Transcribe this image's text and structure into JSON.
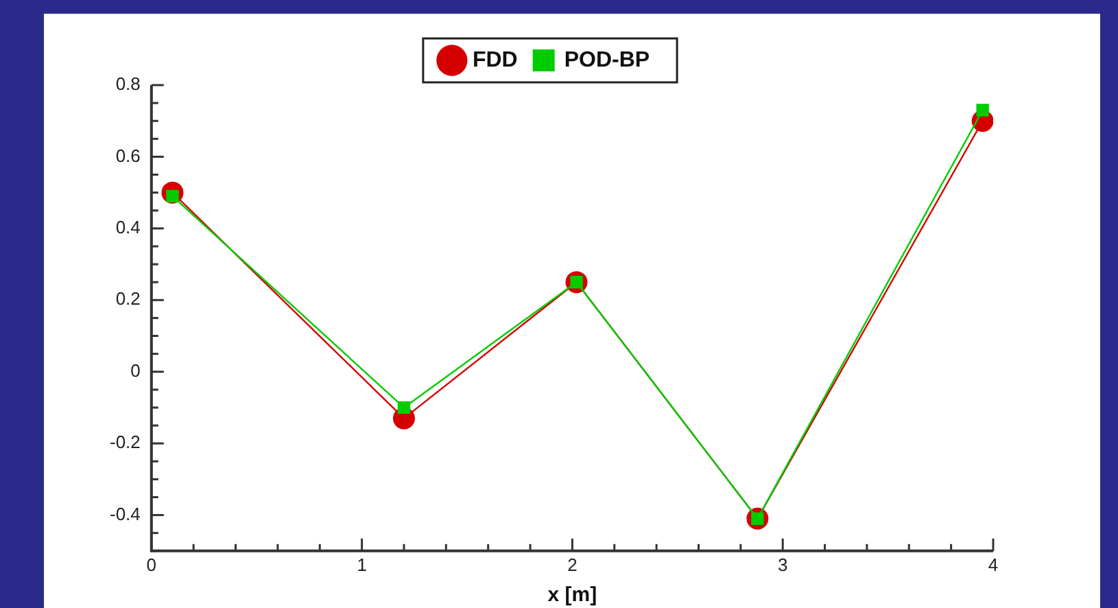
{
  "chart_data": {
    "type": "line",
    "xlabel": "x [m]",
    "x": [
      0.1,
      1.2,
      2.02,
      2.88,
      3.95
    ],
    "series": [
      {
        "name": "FDD",
        "color": "#d40000",
        "marker": "circle",
        "values": [
          0.5,
          -0.13,
          0.25,
          -0.41,
          0.7
        ]
      },
      {
        "name": "POD-BP",
        "color": "#00cc00",
        "marker": "square",
        "values": [
          0.49,
          -0.1,
          0.25,
          -0.41,
          0.73
        ]
      }
    ],
    "xlim": [
      0,
      4
    ],
    "xticks": [
      0,
      {
        "value": 0.2,
        "label": null
      },
      {
        "value": 0.4,
        "label": null
      },
      {
        "value": 0.6,
        "label": null
      },
      {
        "value": 0.8,
        "label": null
      },
      1,
      {
        "value": 1.2,
        "label": null
      },
      {
        "value": 1.4,
        "label": null
      },
      {
        "value": 1.6,
        "label": null
      },
      {
        "value": 1.8,
        "label": null
      },
      2,
      {
        "value": 2.2,
        "label": null
      },
      {
        "value": 2.4,
        "label": null
      },
      {
        "value": 2.6,
        "label": null
      },
      {
        "value": 2.8,
        "label": null
      },
      3,
      {
        "value": 3.2,
        "label": null
      },
      {
        "value": 3.4,
        "label": null
      },
      {
        "value": 3.6,
        "label": null
      },
      {
        "value": 3.8,
        "label": null
      },
      4
    ],
    "ylim": [
      -0.5,
      0.8
    ],
    "yticks": [
      {
        "value": -0.5,
        "label": null
      },
      {
        "value": -0.45,
        "label": null
      },
      -0.4,
      {
        "value": -0.35,
        "label": null
      },
      {
        "value": -0.3,
        "label": null
      },
      {
        "value": -0.25,
        "label": null
      },
      -0.2,
      {
        "value": -0.15,
        "label": null
      },
      {
        "value": -0.1,
        "label": null
      },
      {
        "value": -0.05,
        "label": null
      },
      0,
      {
        "value": 0.05,
        "label": null
      },
      {
        "value": 0.1,
        "label": null
      },
      {
        "value": 0.15,
        "label": null
      },
      0.2,
      {
        "value": 0.25,
        "label": null
      },
      {
        "value": 0.3,
        "label": null
      },
      {
        "value": 0.35,
        "label": null
      },
      0.4,
      {
        "value": 0.45,
        "label": null
      },
      {
        "value": 0.5,
        "label": null
      },
      {
        "value": 0.55,
        "label": null
      },
      0.6,
      {
        "value": 0.65,
        "label": null
      },
      {
        "value": 0.7,
        "label": null
      },
      {
        "value": 0.75,
        "label": null
      },
      0.8
    ],
    "grid": false,
    "legend": "top"
  }
}
